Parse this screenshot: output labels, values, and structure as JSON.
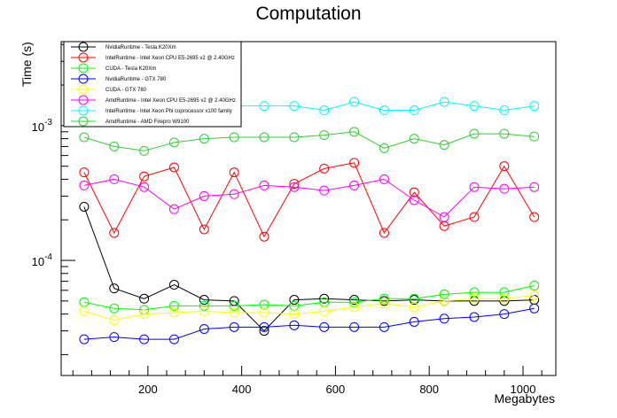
{
  "chart_data": {
    "type": "line",
    "title": "Computation",
    "xlabel": "Megabytes",
    "ylabel": "Time (s)",
    "xlim": [
      15,
      1070
    ],
    "ylim": [
      1.4e-05,
      0.0042
    ],
    "yscale": "log",
    "xticks": [
      200,
      400,
      600,
      800,
      1000
    ],
    "yticks": [
      {
        "value": 0.0001,
        "base": "10",
        "exp": "-4"
      },
      {
        "value": 0.001,
        "base": "10",
        "exp": "-3"
      }
    ],
    "grid": false,
    "legend_position": "top-left",
    "x": [
      64,
      128,
      192,
      256,
      320,
      384,
      448,
      512,
      576,
      640,
      704,
      768,
      832,
      896,
      960,
      1024
    ],
    "series": [
      {
        "name": "NvidiaRuntime - Tesla K20Xm",
        "color": "#000000",
        "values": [
          0.00025,
          6.2e-05,
          5.2e-05,
          6.6e-05,
          5.1e-05,
          5e-05,
          3e-05,
          5.1e-05,
          5.2e-05,
          5.1e-05,
          5e-05,
          5.1e-05,
          5e-05,
          5e-05,
          5e-05,
          5.1e-05
        ]
      },
      {
        "name": "IntelRuntime - Intel Xeon CPU E5-2695 v2 @ 2.40GHz",
        "color": "#ff0000",
        "values": [
          0.00045,
          0.00016,
          0.00042,
          0.00049,
          0.00017,
          0.00045,
          0.00015,
          0.00037,
          0.00048,
          0.00053,
          0.00016,
          0.00032,
          0.00018,
          0.00021,
          0.0005,
          0.00021
        ]
      },
      {
        "name": "CUDA - Tesla K20Xm",
        "color": "#00ff00",
        "values": [
          4.9e-05,
          4.4e-05,
          4.3e-05,
          4.6e-05,
          4.6e-05,
          4.6e-05,
          4.7e-05,
          4.6e-05,
          4.9e-05,
          4.9e-05,
          5.2e-05,
          5.2e-05,
          5.6e-05,
          5.8e-05,
          5.8e-05,
          6.5e-05
        ]
      },
      {
        "name": "NvidiaRuntime - GTX 780",
        "color": "#0000ff",
        "values": [
          2.6e-05,
          2.7e-05,
          2.6e-05,
          2.6e-05,
          3.1e-05,
          3.2e-05,
          3.2e-05,
          3.3e-05,
          3.2e-05,
          3.2e-05,
          3.2e-05,
          3.5e-05,
          3.7e-05,
          3.8e-05,
          4e-05,
          4.4e-05
        ]
      },
      {
        "name": "CUDA - GTX 780",
        "color": "#ffff00",
        "values": [
          4.2e-05,
          3.6e-05,
          4e-05,
          4.1e-05,
          4.2e-05,
          4.1e-05,
          4.1e-05,
          4e-05,
          4.2e-05,
          4.5e-05,
          4.8e-05,
          4.5e-05,
          5e-05,
          5.2e-05,
          5.2e-05,
          5.5e-05
        ]
      },
      {
        "name": "AmdRuntime - Intel Xeon CPU E5-2695 v2 @ 2.40GHz",
        "color": "#ff00ff",
        "values": [
          0.00036,
          0.0004,
          0.00035,
          0.00024,
          0.0003,
          0.00031,
          0.00036,
          0.00035,
          0.00033,
          0.00036,
          0.0004,
          0.00028,
          0.00021,
          0.00035,
          0.00034,
          0.00035
        ]
      },
      {
        "name": "IntelRuntime - Intel Xeon Phi coprocessor x100 family",
        "color": "#00ffff",
        "values": [
          0.0013,
          0.0014,
          0.0013,
          0.0014,
          0.0014,
          0.0014,
          0.0014,
          0.0014,
          0.0013,
          0.0015,
          0.0013,
          0.0013,
          0.0015,
          0.0014,
          0.0013,
          0.0014
        ]
      },
      {
        "name": "AmdRuntime - AMD Firepro W9100",
        "color": "#33cc33",
        "values": [
          0.00082,
          0.0007,
          0.00065,
          0.00075,
          0.0008,
          0.00082,
          0.00082,
          0.00082,
          0.00085,
          0.0009,
          0.00068,
          0.0008,
          0.00072,
          0.00087,
          0.00087,
          0.00083
        ]
      }
    ]
  }
}
